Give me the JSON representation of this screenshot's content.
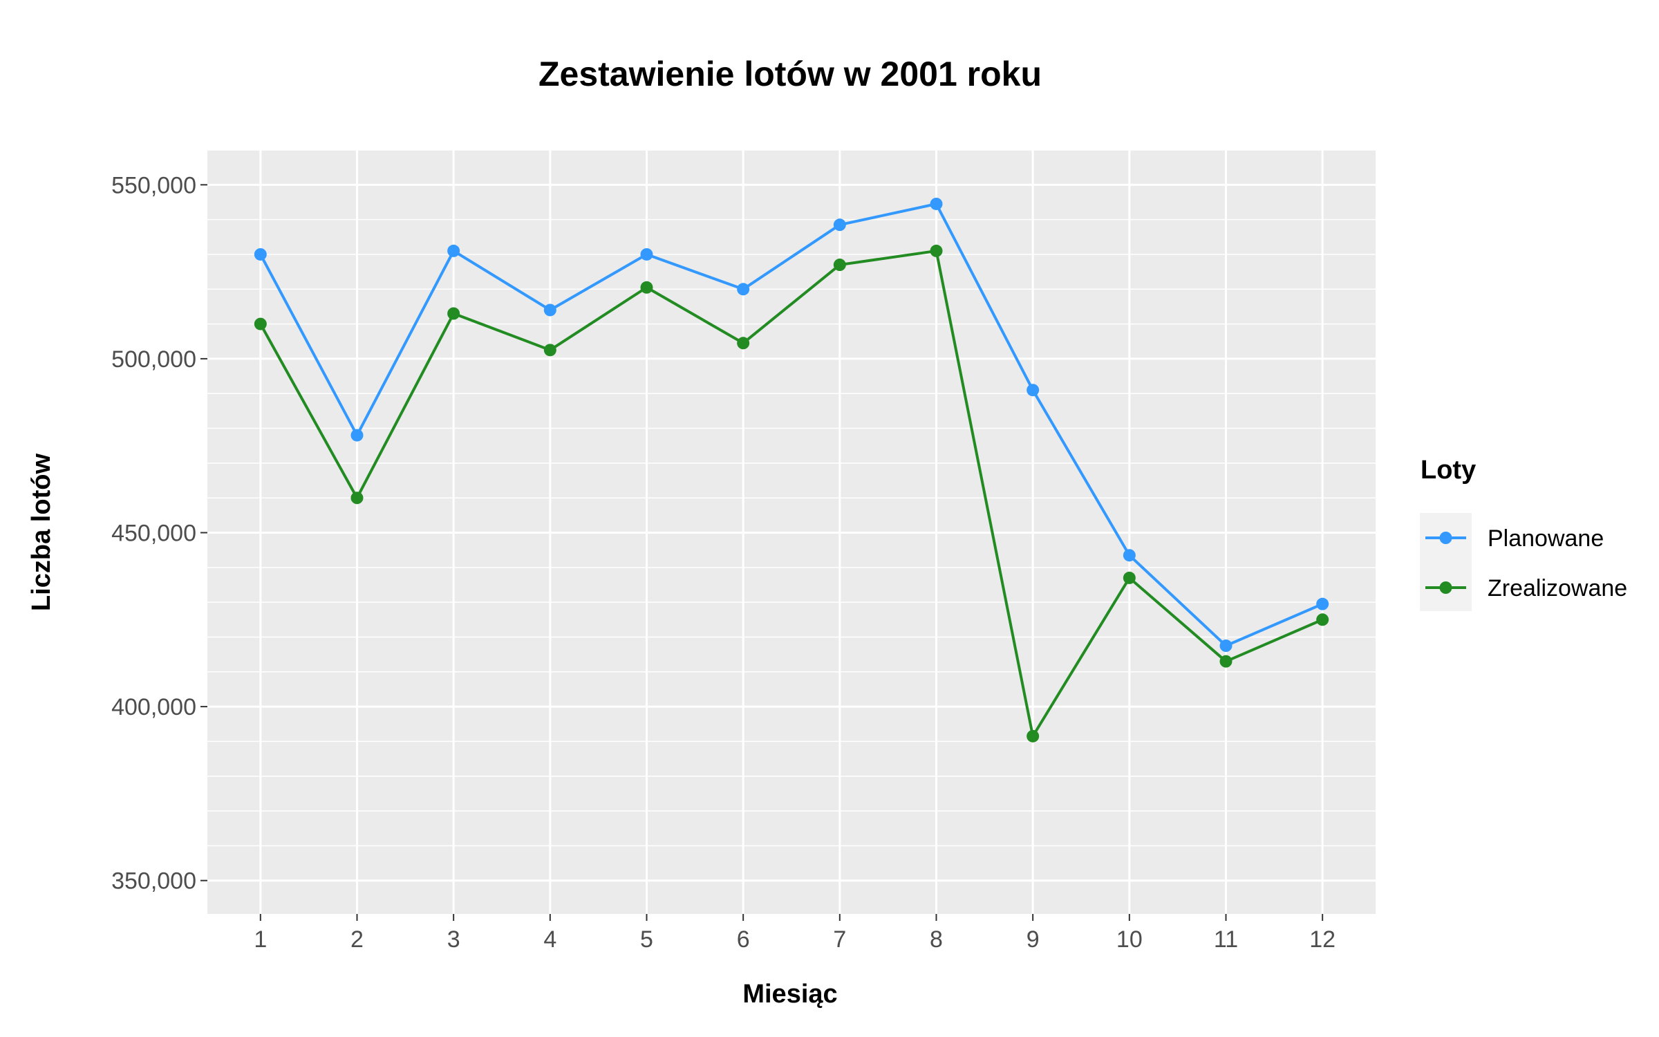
{
  "chart_data": {
    "type": "line",
    "title": "Zestawienie lotów w 2001 roku",
    "xlabel": "Miesiąc",
    "ylabel": "Liczba lotów",
    "x": [
      1,
      2,
      3,
      4,
      5,
      6,
      7,
      8,
      9,
      10,
      11,
      12
    ],
    "x_tick_labels": [
      "1",
      "2",
      "3",
      "4",
      "5",
      "6",
      "7",
      "8",
      "9",
      "10",
      "11",
      "12"
    ],
    "y_ticks": [
      350000,
      400000,
      450000,
      500000,
      550000
    ],
    "y_tick_labels": [
      "350,000",
      "400,000",
      "450,000",
      "500,000",
      "550,000"
    ],
    "xlim": [
      0.45,
      12.55
    ],
    "ylim": [
      340400,
      560000
    ],
    "grid": true,
    "legend": {
      "title": "Loty",
      "position": "right"
    },
    "series": [
      {
        "name": "Planowane",
        "color": "#3399ff",
        "values": [
          530000,
          478000,
          531000,
          514000,
          530000,
          520000,
          538500,
          544500,
          491000,
          443500,
          417500,
          429500
        ]
      },
      {
        "name": "Zrealizowane",
        "color": "#228b22",
        "values": [
          510000,
          460000,
          513000,
          502500,
          520500,
          504500,
          527000,
          531000,
          391500,
          437000,
          413000,
          425000
        ]
      }
    ]
  }
}
